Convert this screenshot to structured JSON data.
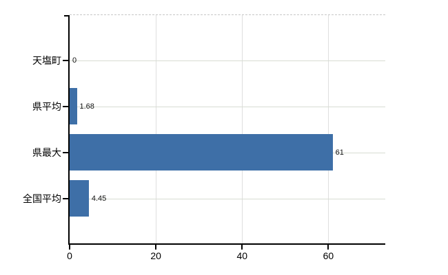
{
  "chart_data": {
    "type": "bar",
    "orientation": "horizontal",
    "title": "",
    "xlabel": "",
    "ylabel": "",
    "categories": [
      "天塩町",
      "県平均",
      "県最大",
      "全国平均"
    ],
    "values": [
      0,
      1.68,
      61,
      4.45
    ],
    "value_labels": [
      "0",
      "1.68",
      "61",
      "4.45"
    ],
    "x_ticks": [
      0,
      20,
      40,
      60
    ],
    "x_tick_labels": [
      "0",
      "20",
      "40",
      "60"
    ],
    "xlim": [
      0,
      73.2
    ],
    "grid": true,
    "legend": "none",
    "colors": {
      "bar": "#3e6fa7",
      "axis": "#000000",
      "vertical_gridline": "#dedede",
      "category_gridline": "#d7dcd2",
      "top_border_dashed": "#c6c6c6",
      "label_text": "#111111",
      "tick_text": "#000000"
    }
  }
}
